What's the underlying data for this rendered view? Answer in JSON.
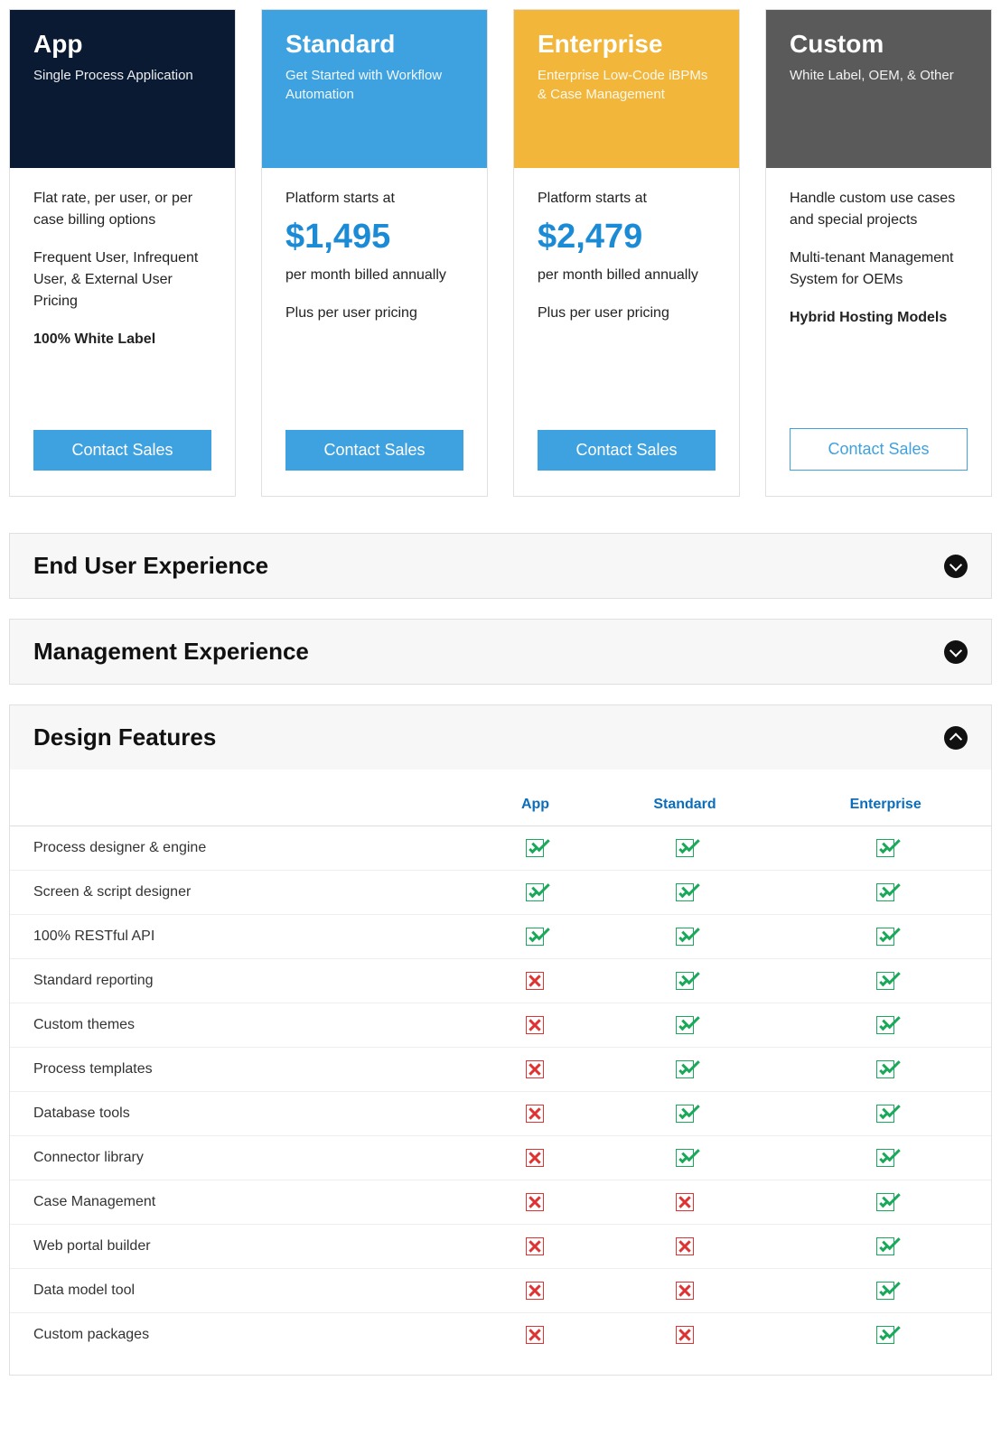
{
  "colors": {
    "app_header": "#0a1a33",
    "standard_header": "#3fa2e0",
    "enterprise_header": "#f1b63a",
    "custom_header": "#5a5a5a",
    "price": "#1b8bd6",
    "btn_fill": "#3fa2e0",
    "btn_outline": "#3fa2e0",
    "th": "#0a6ebd"
  },
  "cards": [
    {
      "id": "app",
      "title": "App",
      "subtitle": "Single Process Application",
      "header_bg": "#0a1a33",
      "body_lines": [
        "Flat rate, per user, or per case billing options",
        "Frequent User, Infrequent User, & External User Pricing"
      ],
      "body_bold": "100% White Label",
      "button_label": "Contact Sales",
      "button_style": "filled"
    },
    {
      "id": "standard",
      "title": "Standard",
      "subtitle": "Get Started with Workflow Automation",
      "header_bg": "#3fa2e0",
      "starts_at": "Platform starts at",
      "price": "$1,495",
      "billed": "per month billed annually",
      "body_lines": [
        "Plus per user pricing"
      ],
      "button_label": "Contact Sales",
      "button_style": "filled"
    },
    {
      "id": "enterprise",
      "title": "Enterprise",
      "subtitle": "Enterprise Low-Code iBPMs & Case Management",
      "header_bg": "#f1b63a",
      "starts_at": "Platform starts at",
      "price": "$2,479",
      "billed": "per month billed annually",
      "body_lines": [
        "Plus per user pricing"
      ],
      "button_label": "Contact Sales",
      "button_style": "filled"
    },
    {
      "id": "custom",
      "title": "Custom",
      "subtitle": "White Label, OEM, & Other",
      "header_bg": "#5a5a5a",
      "body_lines": [
        "Handle custom use cases and special projects",
        "Multi-tenant Management System for OEMs"
      ],
      "body_bold": "Hybrid Hosting Models",
      "button_label": "Contact Sales",
      "button_style": "outline"
    }
  ],
  "accordions": [
    {
      "id": "end-user",
      "title": "End User Experience",
      "expanded": false
    },
    {
      "id": "management",
      "title": "Management Experience",
      "expanded": false
    },
    {
      "id": "design",
      "title": "Design Features",
      "expanded": true
    }
  ],
  "feature_table": {
    "columns": [
      "App",
      "Standard",
      "Enterprise"
    ],
    "rows": [
      {
        "label": "Process designer & engine",
        "values": [
          true,
          true,
          true
        ]
      },
      {
        "label": "Screen & script designer",
        "values": [
          true,
          true,
          true
        ]
      },
      {
        "label": "100% RESTful API",
        "values": [
          true,
          true,
          true
        ]
      },
      {
        "label": "Standard reporting",
        "values": [
          false,
          true,
          true
        ]
      },
      {
        "label": "Custom themes",
        "values": [
          false,
          true,
          true
        ]
      },
      {
        "label": "Process templates",
        "values": [
          false,
          true,
          true
        ]
      },
      {
        "label": "Database tools",
        "values": [
          false,
          true,
          true
        ]
      },
      {
        "label": "Connector library",
        "values": [
          false,
          true,
          true
        ]
      },
      {
        "label": "Case Management",
        "values": [
          false,
          false,
          true
        ]
      },
      {
        "label": "Web portal builder",
        "values": [
          false,
          false,
          true
        ]
      },
      {
        "label": "Data model tool",
        "values": [
          false,
          false,
          true
        ]
      },
      {
        "label": "Custom packages",
        "values": [
          false,
          false,
          true
        ]
      }
    ]
  }
}
